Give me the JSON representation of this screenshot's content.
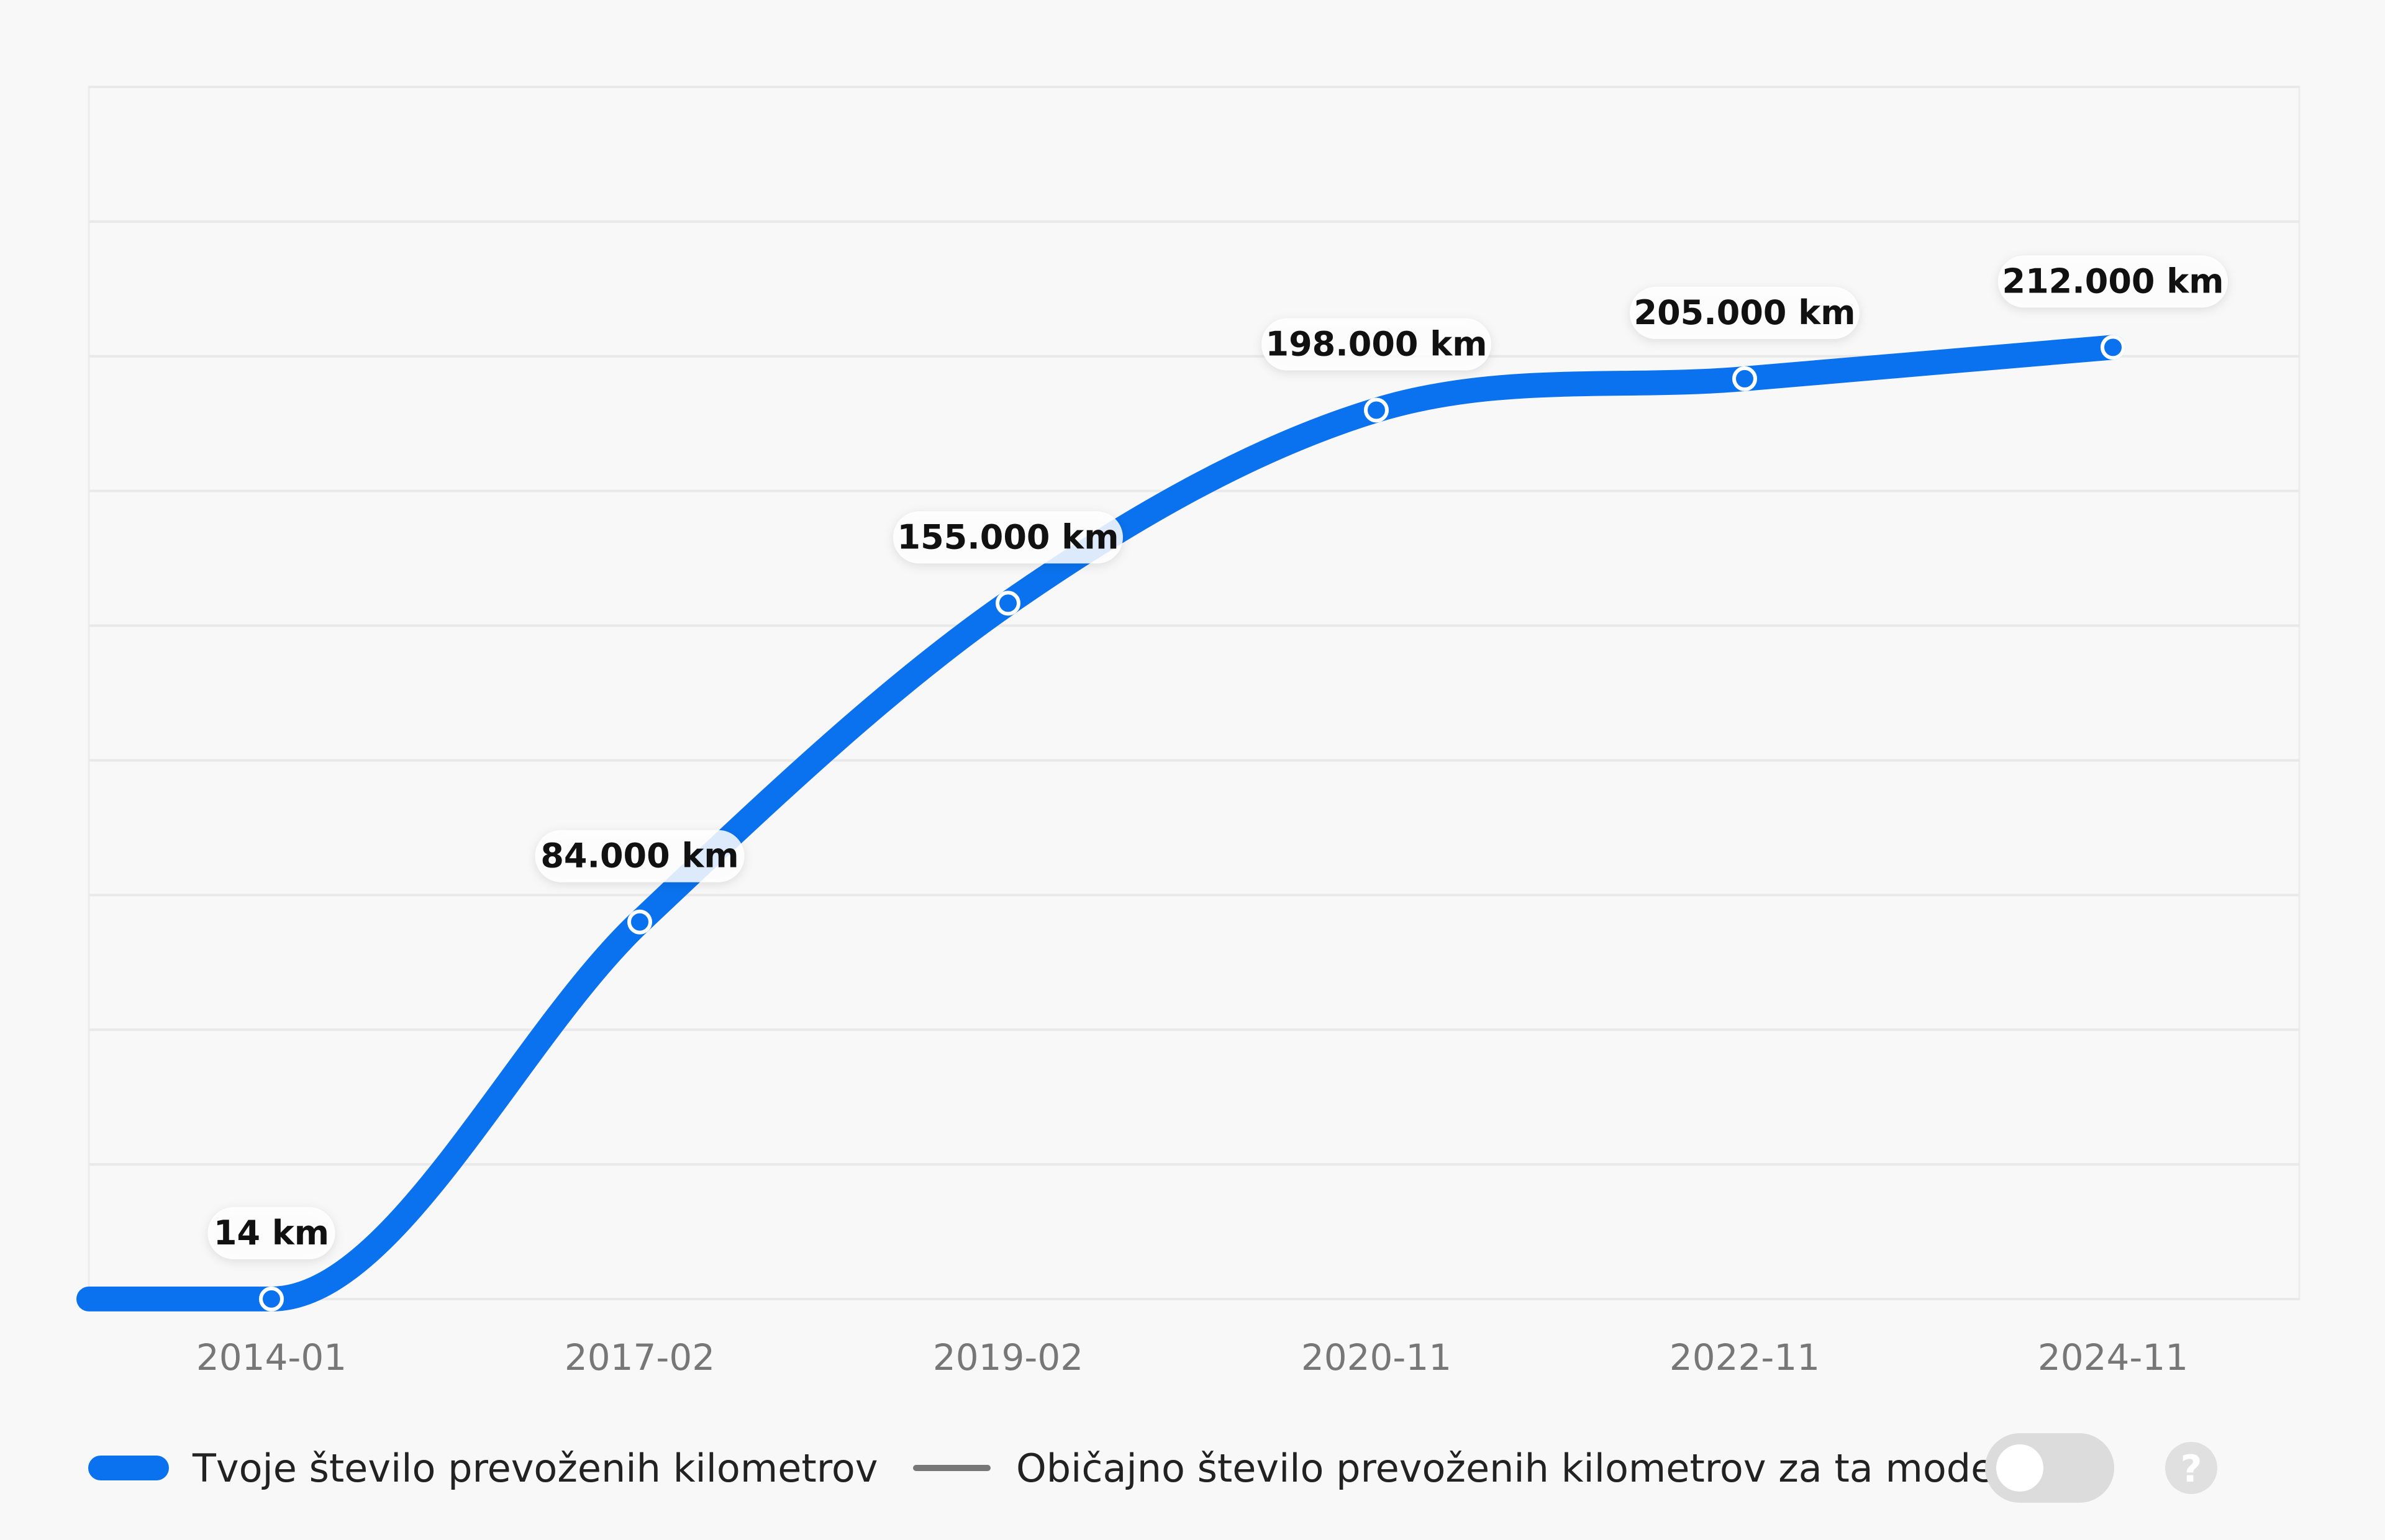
{
  "chart_data": {
    "type": "line",
    "categories": [
      "2014-01",
      "2017-02",
      "2019-02",
      "2020-11",
      "2022-11",
      "2024-11"
    ],
    "series": [
      {
        "name": "Tvoje število prevoženih kilometrov",
        "values": [
          14,
          84000,
          155000,
          198000,
          205000,
          212000
        ],
        "labels": [
          "14 km",
          "84.000 km",
          "155.000 km",
          "198.000 km",
          "205.000 km",
          "212.000 km"
        ],
        "color": "#0a72ee"
      }
    ],
    "ylim": [
      0,
      270000
    ],
    "grid": true,
    "legend": {
      "position": "bottom-left",
      "items": [
        {
          "label": "Tvoje število prevoženih kilometrov",
          "color": "#0a72ee"
        },
        {
          "label": "Običajno število prevoženih kilometrov za ta model",
          "color": "#777777"
        }
      ]
    },
    "toggle": {
      "on": false
    },
    "help_icon": "question-icon"
  }
}
